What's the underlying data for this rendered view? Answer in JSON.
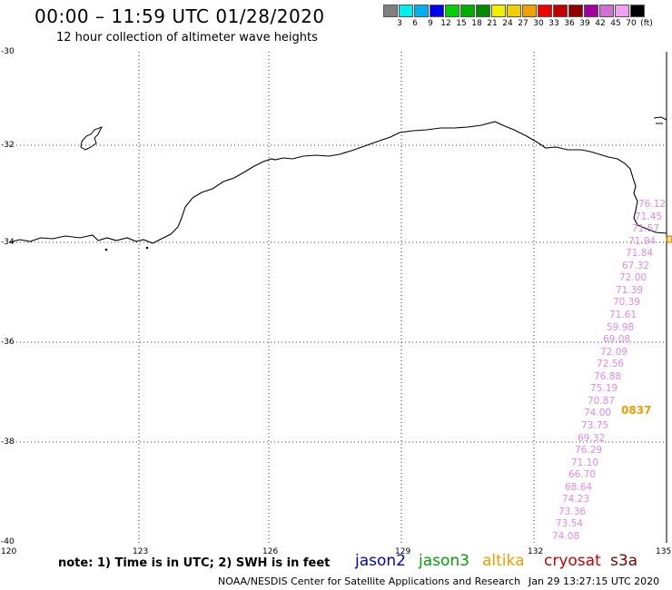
{
  "header": {
    "title": "00:00 – 11:59 UTC 01/28/2020",
    "subtitle": "12 hour collection of altimeter wave heights"
  },
  "legend": {
    "unit": "(ft)",
    "colors": [
      "#808080",
      "#00f0f0",
      "#00b0f0",
      "#0000f0",
      "#00d000",
      "#00ae00",
      "#008a00",
      "#f0f000",
      "#f0d000",
      "#f0a000",
      "#f00000",
      "#c00000",
      "#900000",
      "#a000a0",
      "#d070d0",
      "#f0a0f0",
      "#000000"
    ],
    "labels": [
      "3",
      "6",
      "9",
      "12",
      "15",
      "18",
      "21",
      "24",
      "27",
      "30",
      "33",
      "36",
      "39",
      "42",
      "45",
      "70"
    ]
  },
  "map": {
    "lat_labels": [
      "-30",
      "-32",
      "-34",
      "-36",
      "-38",
      "-40"
    ],
    "lon_labels": [
      "120",
      "123",
      "126",
      "129",
      "132",
      "135"
    ]
  },
  "track": {
    "swh_values": [
      "76.12",
      "71.45",
      "71.57",
      "71.94",
      "71.84",
      "67.32",
      "72.00",
      "71.39",
      "70.39",
      "71.61",
      "59.98",
      "69.08",
      "72.09",
      "72.56",
      "76.88",
      "75.19",
      "70.87",
      "74.00",
      "73.75",
      "69.32",
      "76.29",
      "71.10",
      "66.70",
      "68.64",
      "74.23",
      "73.36",
      "73.54",
      "74.08"
    ],
    "pass_time": "0837",
    "pass_time_edge": "0",
    "swh_color": "#e08ae6",
    "pass_color": "#f59b00"
  },
  "footer": {
    "note": "note: 1) Time is in UTC; 2) SWH is in feet",
    "satellites": [
      {
        "name": "jason2",
        "color": "#0000cc"
      },
      {
        "name": "jason3",
        "color": "#00a000"
      },
      {
        "name": "altika",
        "color": "#f59b00"
      },
      {
        "name": "cryosat",
        "color": "#cc0000"
      },
      {
        "name": "s3a",
        "color": "#800000"
      }
    ],
    "credit": "NOAA/NESDIS Center for Satellite Applications and Research",
    "timestamp": "Jan 29 13:27:15 UTC 2020"
  }
}
